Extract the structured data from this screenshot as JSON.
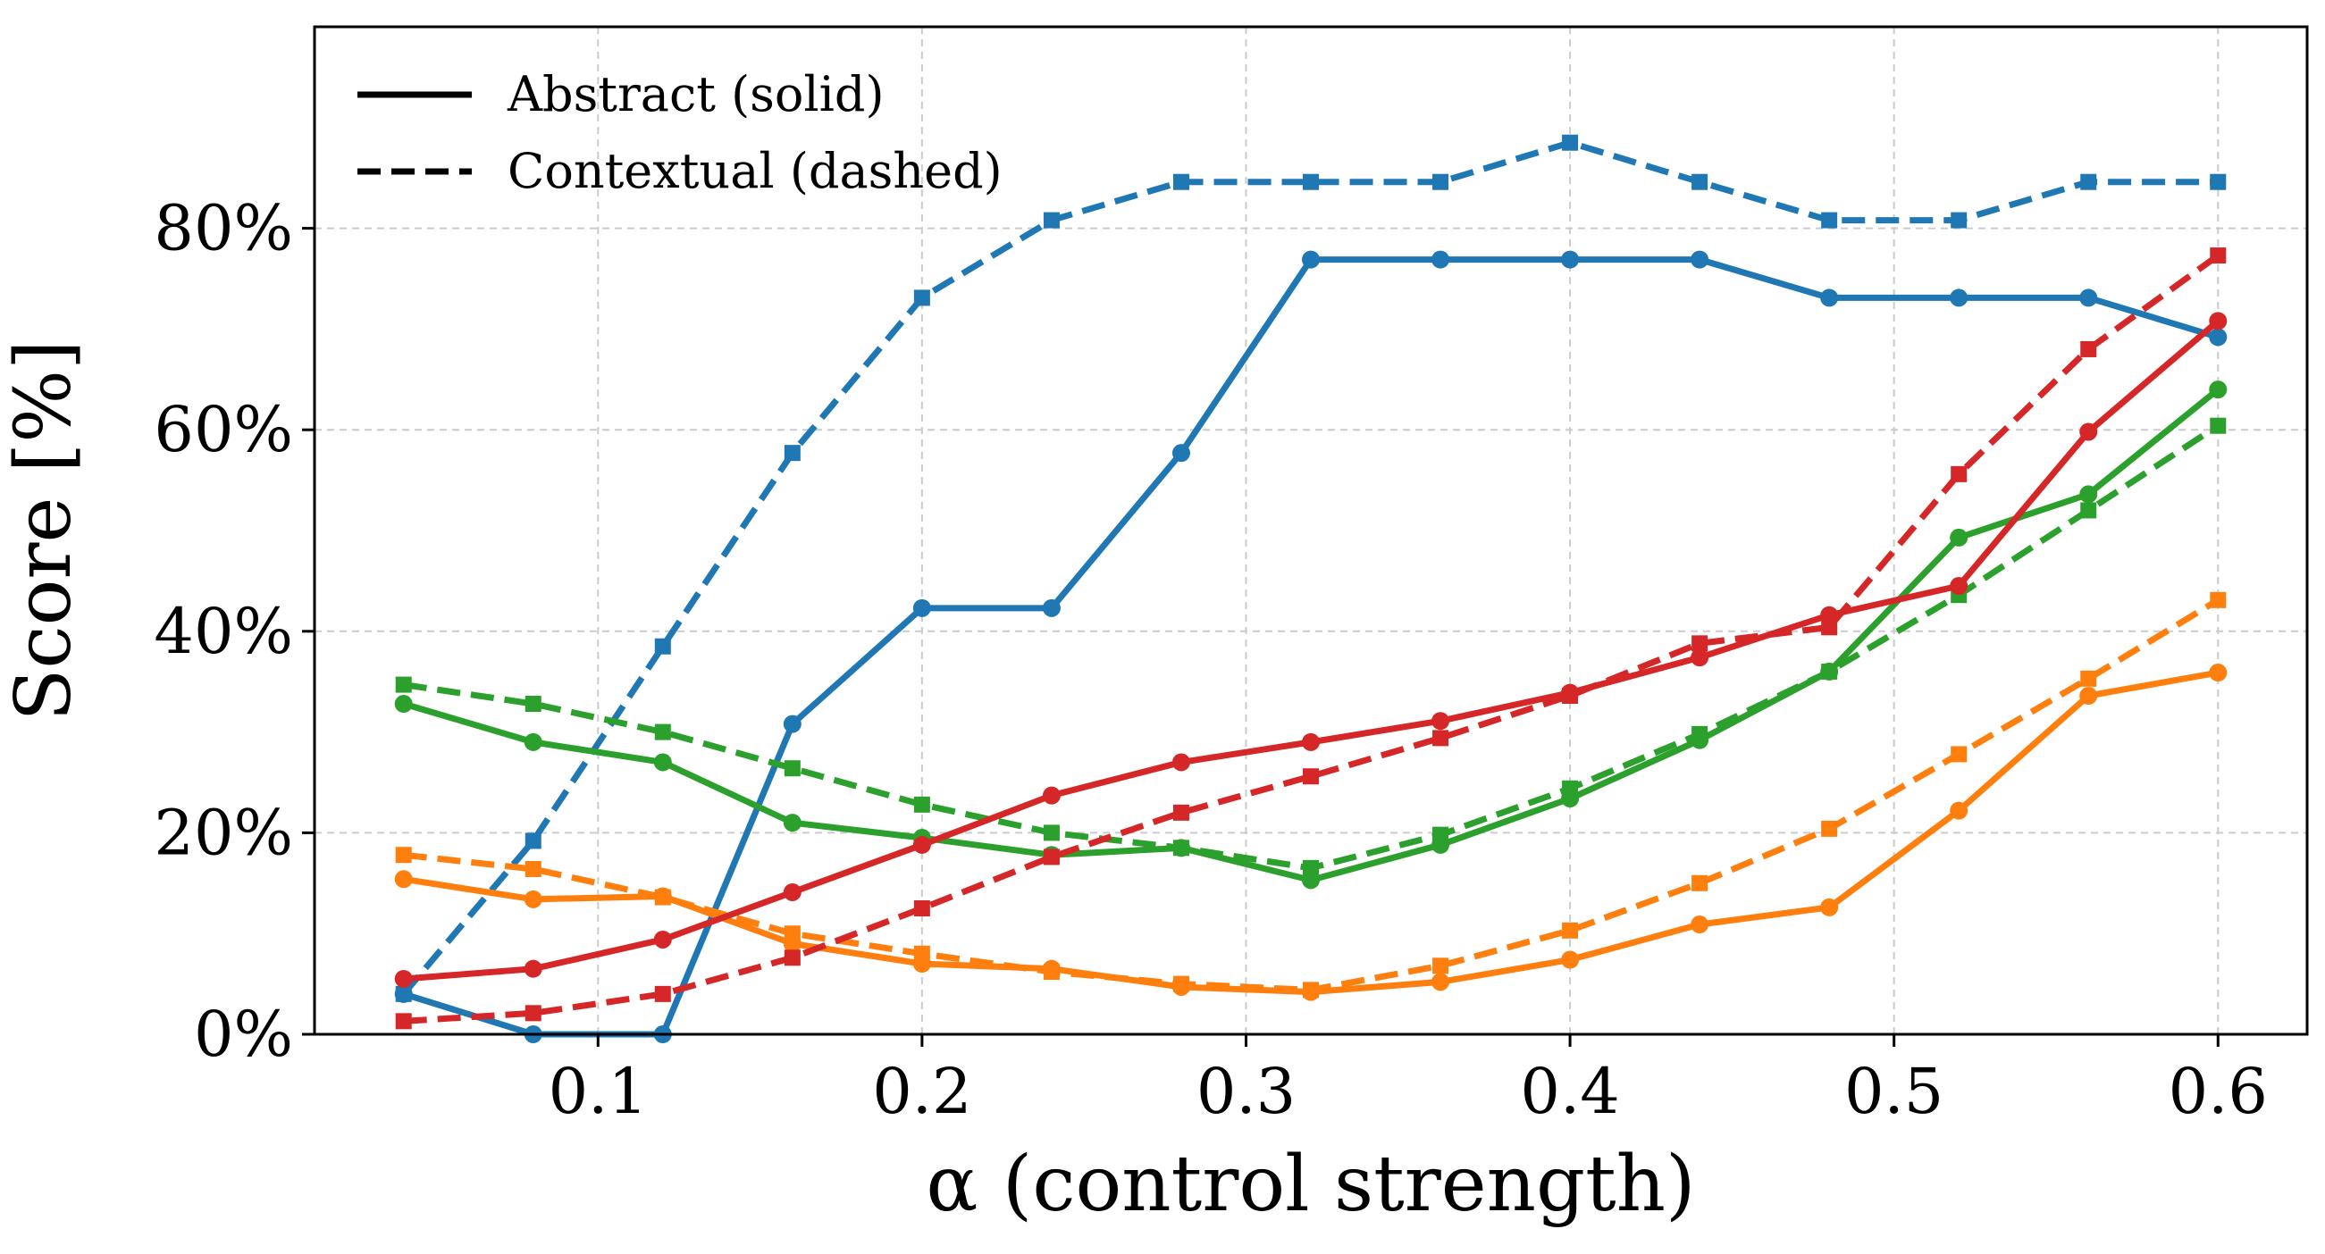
{
  "chart_data": {
    "type": "line",
    "xlabel": "α (control strength)",
    "ylabel": "Score [%]",
    "xlim": [
      0.0125,
      0.6275
    ],
    "ylim": [
      0,
      100
    ],
    "grid": true,
    "legend_position": "top-left",
    "x_ticks": [
      0.1,
      0.2,
      0.3,
      0.4,
      0.5,
      0.6
    ],
    "x_tick_labels": [
      "0.1",
      "0.2",
      "0.3",
      "0.4",
      "0.5",
      "0.6"
    ],
    "y_ticks": [
      0,
      20,
      40,
      60,
      80
    ],
    "y_tick_labels": [
      "0%",
      "20%",
      "40%",
      "60%",
      "80%"
    ],
    "legend": [
      {
        "label": "Abstract (solid)",
        "style": "solid"
      },
      {
        "label": "Contextual (dashed)",
        "style": "dashed"
      }
    ],
    "x": [
      0.04,
      0.08,
      0.12,
      0.16,
      0.2,
      0.24,
      0.28,
      0.32,
      0.36,
      0.4,
      0.44,
      0.48,
      0.52,
      0.56,
      0.6
    ],
    "series": [
      {
        "color": "#1f77b4",
        "style": "solid",
        "marker": "circle",
        "values": [
          4.0,
          0.0,
          0.0,
          30.8,
          42.3,
          42.3,
          57.7,
          76.9,
          76.9,
          76.9,
          76.9,
          73.1,
          73.1,
          73.1,
          69.2
        ]
      },
      {
        "color": "#1f77b4",
        "style": "dashed",
        "marker": "square",
        "values": [
          4.0,
          19.2,
          38.5,
          57.7,
          73.1,
          80.8,
          84.6,
          84.6,
          84.6,
          88.5,
          84.6,
          80.8,
          80.8,
          84.6,
          84.6
        ]
      },
      {
        "color": "#2ca02c",
        "style": "solid",
        "marker": "circle",
        "values": [
          32.8,
          29.0,
          27.0,
          21.0,
          19.5,
          17.8,
          18.5,
          15.3,
          18.8,
          23.4,
          29.2,
          36.0,
          49.3,
          53.6,
          64.0
        ]
      },
      {
        "color": "#2ca02c",
        "style": "dashed",
        "marker": "square",
        "values": [
          34.7,
          32.8,
          30.0,
          26.4,
          22.8,
          20.0,
          18.5,
          16.5,
          19.8,
          24.4,
          29.8,
          36.0,
          43.6,
          52.0,
          60.4
        ]
      },
      {
        "color": "#ff7f0e",
        "style": "solid",
        "marker": "circle",
        "values": [
          15.4,
          13.4,
          13.7,
          9.0,
          7.0,
          6.5,
          4.7,
          4.2,
          5.2,
          7.4,
          10.9,
          12.6,
          22.2,
          33.6,
          35.9
        ]
      },
      {
        "color": "#ff7f0e",
        "style": "dashed",
        "marker": "square",
        "values": [
          17.8,
          16.4,
          13.6,
          10.0,
          8.0,
          6.2,
          5.0,
          4.4,
          6.8,
          10.3,
          15.0,
          20.4,
          27.8,
          35.3,
          43.1
        ]
      },
      {
        "color": "#d62728",
        "style": "solid",
        "marker": "circle",
        "values": [
          5.5,
          6.5,
          9.4,
          14.1,
          18.8,
          23.7,
          27.0,
          29.0,
          31.1,
          33.9,
          37.4,
          41.6,
          44.5,
          59.8,
          70.8
        ]
      },
      {
        "color": "#d62728",
        "style": "dashed",
        "marker": "square",
        "values": [
          1.3,
          2.1,
          4.0,
          7.6,
          12.5,
          17.6,
          22.0,
          25.6,
          29.4,
          33.6,
          38.8,
          40.4,
          55.6,
          68.0,
          77.3
        ]
      }
    ]
  }
}
